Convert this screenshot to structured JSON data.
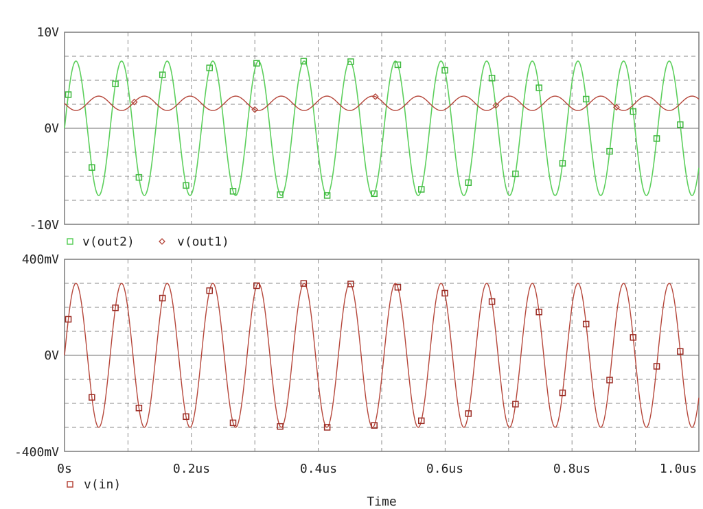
{
  "colors": {
    "out2": "#5ccf5c",
    "out2_marker": "#3eb83e",
    "out1": "#b5463a",
    "vin": "#b5463a",
    "vin_marker": "#9a2a22",
    "grid": "#8a8a8a",
    "axis": "#7a7a7a",
    "background": "#ffffff"
  },
  "x_axis": {
    "title": "Time",
    "ticks": [
      "0s",
      "0.2us",
      "0.4us",
      "0.6us",
      "0.8us",
      "1.0us"
    ],
    "range_us": [
      0,
      1.0
    ]
  },
  "chart_data": [
    {
      "type": "line",
      "title": "",
      "xlabel": "Time",
      "ylabel": "",
      "xlim": [
        0,
        1.0
      ],
      "ylim": [
        -10,
        10
      ],
      "y_unit": "V",
      "y_ticks": [
        "10V",
        "0V",
        "-10V"
      ],
      "grid": true,
      "legend_position": "bottom-left",
      "series": [
        {
          "name": "v(out2)",
          "marker": "square",
          "offset": 0.0,
          "amplitude": 7.0,
          "frequency_mhz": 13.9,
          "phase_deg": 0
        },
        {
          "name": "v(out1)",
          "marker": "diamond",
          "offset": 2.6,
          "amplitude": 0.75,
          "frequency_mhz": 13.9,
          "phase_deg": 180
        }
      ]
    },
    {
      "type": "line",
      "title": "",
      "xlabel": "Time",
      "ylabel": "",
      "xlim": [
        0,
        1.0
      ],
      "ylim": [
        -400,
        400
      ],
      "y_unit": "mV",
      "y_ticks": [
        "400mV",
        "0V",
        "-400mV"
      ],
      "grid": true,
      "legend_position": "bottom-left",
      "series": [
        {
          "name": "v(in)",
          "marker": "square",
          "offset": 0.0,
          "amplitude": 300,
          "frequency_mhz": 13.9,
          "phase_deg": 0
        }
      ]
    }
  ]
}
